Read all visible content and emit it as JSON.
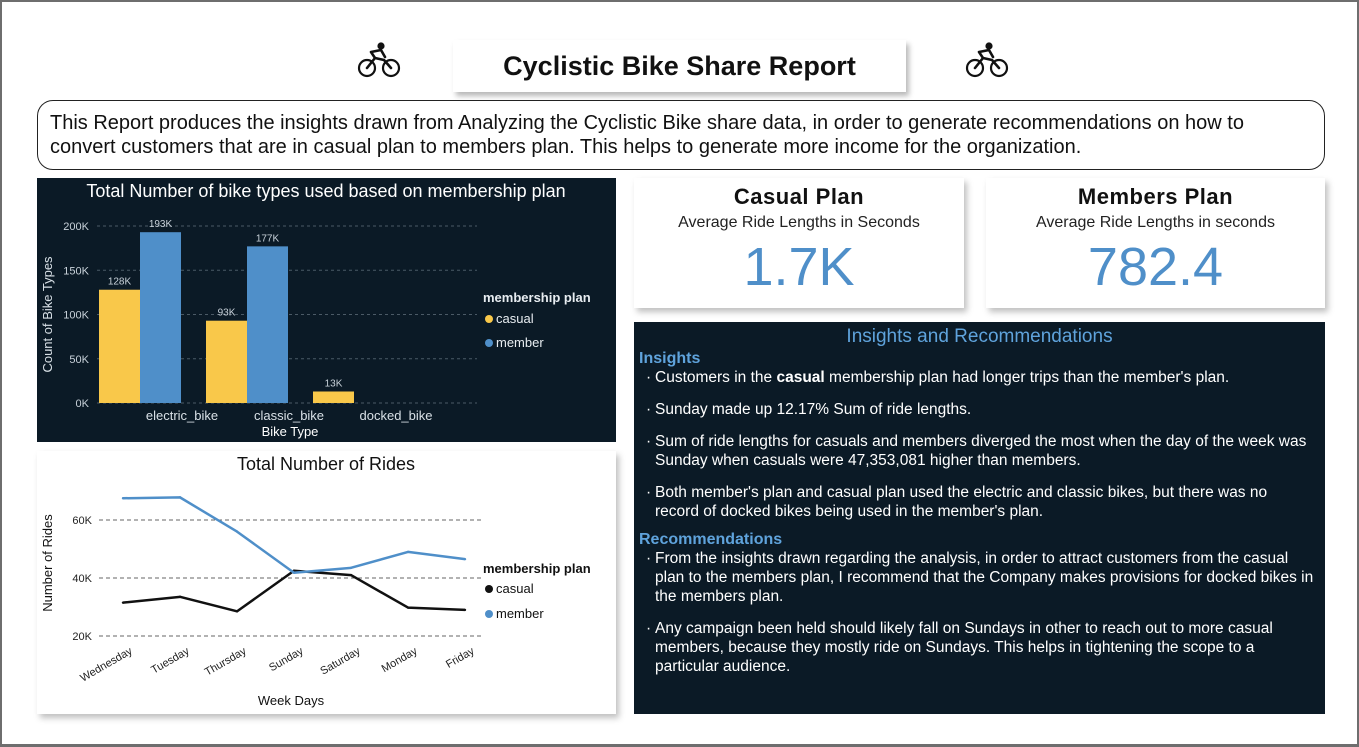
{
  "report": {
    "title": "Cyclistic Bike Share Report",
    "intro": "This Report produces the insights drawn from Analyzing the Cyclistic Bike share data, in order to generate recommendations on how to convert customers that are in casual plan to members plan. This helps to generate more income for the organization.",
    "icons": [
      "cyclist-icon",
      "cyclist-icon"
    ]
  },
  "kpis": {
    "casual": {
      "title": "Casual Plan",
      "subtitle": "Average Ride Lengths in Seconds",
      "value": "1.7K"
    },
    "members": {
      "title": "Members Plan",
      "subtitle": "Average Ride Lengths in seconds",
      "value": "782.4"
    }
  },
  "insights": {
    "heading": "Insights and Recommendations",
    "insights_label": "Insights",
    "insight1_pre": "Customers in the ",
    "insight1_bold": "casual",
    "insight1_post": " membership plan had longer trips than the member's plan.",
    "insight2": "Sunday made up 12.17% Sum of ride lengths.",
    "insight3": "Sum of ride lengths for casuals and members diverged the most when the day of the week was Sunday when casuals were 47,353,081 higher than members.",
    "insight4": "Both member's plan and casual plan used the electric and classic bikes, but there was no record of docked bikes being used in the member's plan.",
    "recommendations_label": "Recommendations",
    "rec1": "From the insights drawn regarding the analysis, in order to attract customers from the casual plan to the members plan, I recommend that the Company makes provisions for docked bikes in the members plan.",
    "rec2": "Any campaign been held should likely fall on Sundays in other to reach out to more casual members, because they mostly ride on Sundays. This helps in tightening the scope to a particular audience."
  },
  "chart_data": [
    {
      "type": "bar",
      "title": "Total Number of bike types used based on membership plan",
      "xlabel": "Bike Type",
      "ylabel": "Count of Bike Types",
      "categories": [
        "electric_bike",
        "classic_bike",
        "docked_bike"
      ],
      "series": [
        {
          "name": "casual",
          "values": [
            128000,
            93000,
            13000
          ],
          "labels": [
            "128K",
            "93K",
            "13K"
          ],
          "color": "#f9c84a"
        },
        {
          "name": "member",
          "values": [
            193000,
            177000,
            null
          ],
          "labels": [
            "193K",
            "177K",
            ""
          ],
          "color": "#4f8fc9"
        }
      ],
      "ylim": [
        0,
        200000
      ],
      "yticks": [
        "0K",
        "50K",
        "100K",
        "150K",
        "200K"
      ],
      "ytick_values": [
        0,
        50000,
        100000,
        150000,
        200000
      ],
      "legend_title": "membership plan",
      "legend_position": "right",
      "grid": true,
      "background": "#0b1a26"
    },
    {
      "type": "line",
      "title": "Total Number of Rides",
      "xlabel": "Week Days",
      "ylabel": "Number of Rides",
      "categories": [
        "Wednesday",
        "Tuesday",
        "Thursday",
        "Sunday",
        "Saturday",
        "Monday",
        "Friday"
      ],
      "series": [
        {
          "name": "casual",
          "values": [
            31500,
            33500,
            28500,
            42500,
            41000,
            29800,
            29000
          ],
          "color": "#111111"
        },
        {
          "name": "member",
          "values": [
            67500,
            67800,
            56000,
            41800,
            43500,
            49000,
            46500
          ],
          "color": "#4f8fc9"
        }
      ],
      "ylim": [
        20000,
        70000
      ],
      "yticks": [
        "20K",
        "40K",
        "60K"
      ],
      "ytick_values": [
        20000,
        40000,
        60000
      ],
      "legend_title": "membership plan",
      "legend_position": "right",
      "grid": true
    }
  ]
}
